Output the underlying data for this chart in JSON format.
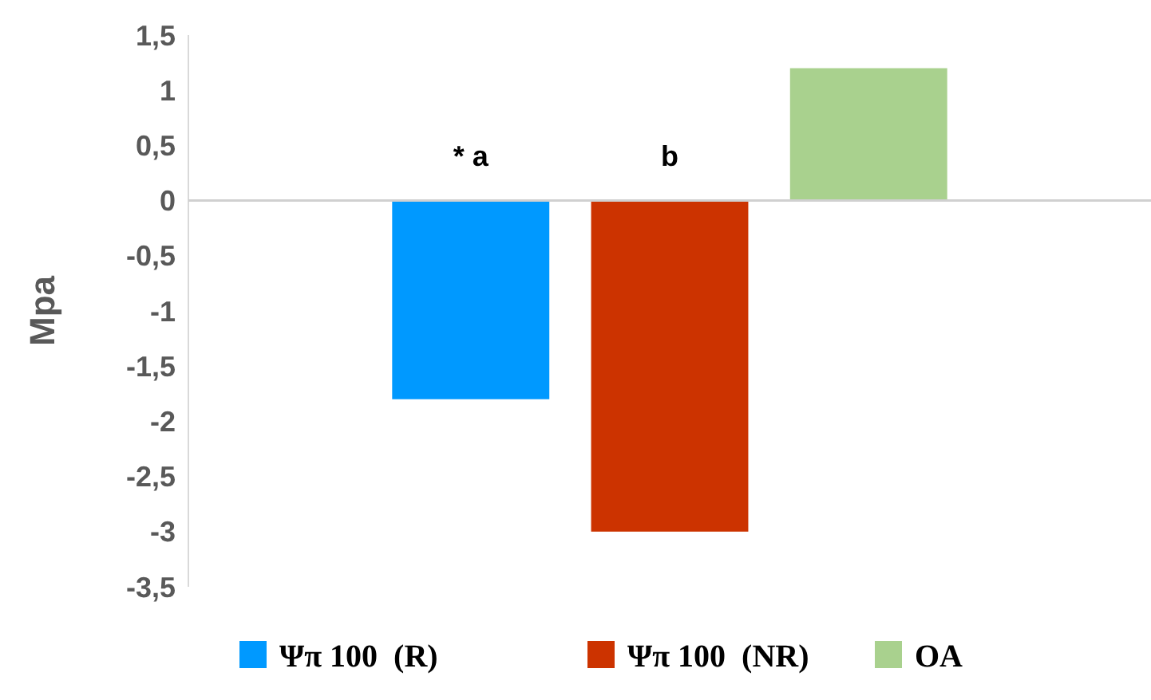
{
  "chart_data": {
    "type": "bar",
    "ylabel": "Mpa",
    "categories": [
      null
    ],
    "series": [
      {
        "name": "Ψπ 100  (R)",
        "color": "#0099ff",
        "values": [
          -1.8
        ]
      },
      {
        "name": "Ψπ 100  (NR)",
        "color": "#cc3300",
        "values": [
          -3
        ]
      },
      {
        "name": "OA",
        "color": "#a9d18e",
        "values": [
          1.2
        ]
      }
    ],
    "ylim": [
      -3.5,
      1.5
    ],
    "yticks": [
      {
        "value": 1.5,
        "label": "1,5"
      },
      1,
      {
        "value": 0.5,
        "label": "0,5"
      },
      0,
      {
        "value": -0.5,
        "label": "-0,5"
      },
      -1,
      {
        "value": -1.5,
        "label": "-1,5"
      },
      -2,
      {
        "value": -2.5,
        "label": "-2,5"
      },
      -3,
      {
        "value": -3.5,
        "label": "-3,5"
      }
    ],
    "annotations": [
      "* a",
      "b"
    ],
    "legend": "bottom"
  }
}
